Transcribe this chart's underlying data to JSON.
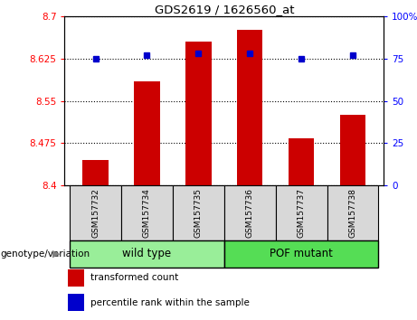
{
  "title": "GDS2619 / 1626560_at",
  "samples": [
    "GSM157732",
    "GSM157734",
    "GSM157735",
    "GSM157736",
    "GSM157737",
    "GSM157738"
  ],
  "bar_values": [
    8.445,
    8.585,
    8.655,
    8.675,
    8.483,
    8.525
  ],
  "percentile_values": [
    75,
    77,
    78,
    78,
    75,
    77
  ],
  "ylim_left": [
    8.4,
    8.7
  ],
  "ylim_right": [
    0,
    100
  ],
  "yticks_left": [
    8.4,
    8.475,
    8.55,
    8.625,
    8.7
  ],
  "ytick_labels_left": [
    "8.4",
    "8.475",
    "8.55",
    "8.625",
    "8.7"
  ],
  "yticks_right": [
    0,
    25,
    50,
    75,
    100
  ],
  "ytick_labels_right": [
    "0",
    "25",
    "50",
    "75",
    "100%"
  ],
  "bar_color": "#cc0000",
  "dot_color": "#0000cc",
  "bar_bottom": 8.4,
  "groups": [
    {
      "label": "wild type",
      "indices": [
        0,
        1,
        2
      ],
      "color": "#99ee99"
    },
    {
      "label": "POF mutant",
      "indices": [
        3,
        4,
        5
      ],
      "color": "#55dd55"
    }
  ],
  "group_label": "genotype/variation",
  "legend_items": [
    {
      "color": "#cc0000",
      "label": "transformed count"
    },
    {
      "color": "#0000cc",
      "label": "percentile rank within the sample"
    }
  ],
  "grid_color": "black",
  "sample_bg": "#d8d8d8",
  "plot_bg": "white"
}
